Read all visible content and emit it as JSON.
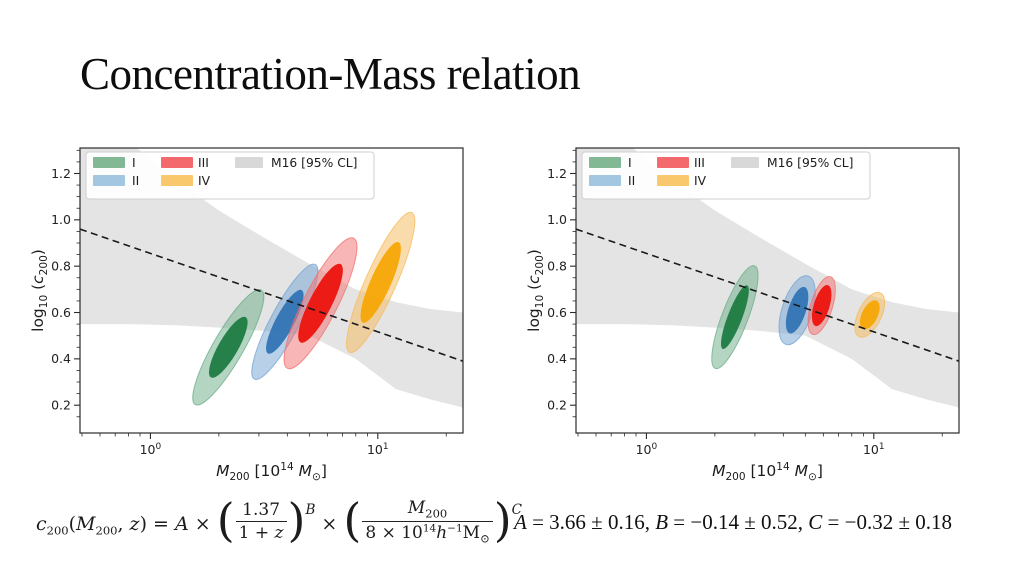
{
  "slide": {
    "title": "Concentration-Mass relation"
  },
  "colors": {
    "background": "#ffffff",
    "band": "#dfdfdf",
    "band_legend": "#d8d8d8",
    "fit_line": "#1a1a1a",
    "axis": "#2b2b2b",
    "tick_label": "#222222",
    "legend_border": "#cfcfcf",
    "series": {
      "I": {
        "outer": "#6aab85",
        "inner": "#1d7c42",
        "legend": "#82b894"
      },
      "II": {
        "outer": "#72a3d1",
        "inner": "#3274b5",
        "legend": "#a3c6e1"
      },
      "III": {
        "outer": "#f26d6d",
        "inner": "#ec130e",
        "legend": "#f4696b"
      },
      "IV": {
        "outer": "#f5b95a",
        "inner": "#f7a707",
        "legend": "#f9c86d"
      }
    }
  },
  "chart_data": [
    {
      "type": "scatter",
      "panel": "left",
      "title": "",
      "xlabel": "M200 [10^14 Msun]",
      "ylabel": "log10(c200)",
      "xscale": "log",
      "xlim": [
        0.49,
        23.7
      ],
      "ylim": [
        0.08,
        1.31
      ],
      "grid": false,
      "legend_position": "upper left",
      "legend": [
        "I",
        "II",
        "III",
        "IV",
        "M16 [95% CL]"
      ],
      "xlabel_parts": [
        {
          "t": "M",
          "style": "italic"
        },
        {
          "t": "200",
          "script": "sub"
        },
        {
          "t": " [10"
        },
        {
          "t": "14",
          "script": "sup"
        },
        {
          "t": " "
        },
        {
          "t": "M",
          "style": "italic"
        },
        {
          "t": "⊙",
          "script": "sub"
        },
        {
          "t": "]"
        }
      ],
      "ylabel_parts": [
        {
          "t": "log"
        },
        {
          "t": "10",
          "script": "sub"
        },
        {
          "t": " ("
        },
        {
          "t": "c",
          "style": "italic"
        },
        {
          "t": "200",
          "script": "sub"
        },
        {
          "t": ")"
        }
      ],
      "xticks": [
        {
          "value": 1,
          "base": "10",
          "exp": "0"
        },
        {
          "value": 10,
          "base": "10",
          "exp": "1"
        }
      ],
      "xticks_minor": [
        0.5,
        0.6,
        0.7,
        0.8,
        0.9,
        2,
        3,
        4,
        5,
        6,
        7,
        8,
        9,
        20
      ],
      "yticks": [
        0.2,
        0.4,
        0.6,
        0.8,
        1.0,
        1.2
      ],
      "fit_line": {
        "x": [
          0.49,
          23.7
        ],
        "y": [
          0.96,
          0.39
        ],
        "style": "dashed"
      },
      "band": {
        "label": "M16 [95% CL]",
        "x": [
          0.49,
          0.8,
          1.3,
          2.0,
          3.2,
          5.0,
          8.0,
          12.0,
          17.0,
          23.7
        ],
        "upper": [
          1.5,
          1.34,
          1.17,
          1.04,
          0.92,
          0.81,
          0.7,
          0.645,
          0.615,
          0.6
        ],
        "lower": [
          0.55,
          0.55,
          0.545,
          0.535,
          0.52,
          0.5,
          0.4,
          0.27,
          0.225,
          0.19
        ]
      },
      "series": [
        {
          "name": "I",
          "center": [
            2.2,
            0.45
          ],
          "outer": {
            "semi_major": 0.285,
            "semi_minor": 0.065,
            "angle_deg": 30
          },
          "inner": {
            "semi_major": 0.15,
            "semi_minor": 0.042,
            "angle_deg": 30
          }
        },
        {
          "name": "II",
          "center": [
            3.9,
            0.56
          ],
          "outer": {
            "semi_major": 0.28,
            "semi_minor": 0.062,
            "angle_deg": 28
          },
          "inner": {
            "semi_major": 0.155,
            "semi_minor": 0.04,
            "angle_deg": 28
          }
        },
        {
          "name": "III",
          "center": [
            5.6,
            0.64
          ],
          "outer": {
            "semi_major": 0.315,
            "semi_minor": 0.073,
            "angle_deg": 27
          },
          "inner": {
            "semi_major": 0.19,
            "semi_minor": 0.048,
            "angle_deg": 27
          }
        },
        {
          "name": "IV",
          "center": [
            10.3,
            0.73
          ],
          "outer": {
            "semi_major": 0.33,
            "semi_minor": 0.066,
            "angle_deg": 24
          },
          "inner": {
            "semi_major": 0.19,
            "semi_minor": 0.044,
            "angle_deg": 24
          }
        }
      ]
    },
    {
      "type": "scatter",
      "panel": "right",
      "title": "",
      "xlabel": "M200 [10^14 Msun]",
      "ylabel": "log10(c200)",
      "xscale": "log",
      "xlim": [
        0.49,
        23.7
      ],
      "ylim": [
        0.08,
        1.31
      ],
      "grid": false,
      "legend_position": "upper left",
      "legend": [
        "I",
        "II",
        "III",
        "IV",
        "M16 [95% CL]"
      ],
      "xlabel_parts": [
        {
          "t": "M",
          "style": "italic"
        },
        {
          "t": "200",
          "script": "sub"
        },
        {
          "t": " [10"
        },
        {
          "t": "14",
          "script": "sup"
        },
        {
          "t": " "
        },
        {
          "t": "M",
          "style": "italic"
        },
        {
          "t": "⊙",
          "script": "sub"
        },
        {
          "t": "]"
        }
      ],
      "ylabel_parts": [
        {
          "t": "log"
        },
        {
          "t": "10",
          "script": "sub"
        },
        {
          "t": " ("
        },
        {
          "t": "c",
          "style": "italic"
        },
        {
          "t": "200",
          "script": "sub"
        },
        {
          "t": ")"
        }
      ],
      "xticks": [
        {
          "value": 1,
          "base": "10",
          "exp": "0"
        },
        {
          "value": 10,
          "base": "10",
          "exp": "1"
        }
      ],
      "xticks_minor": [
        0.5,
        0.6,
        0.7,
        0.8,
        0.9,
        2,
        3,
        4,
        5,
        6,
        7,
        8,
        9,
        20
      ],
      "yticks": [
        0.2,
        0.4,
        0.6,
        0.8,
        1.0,
        1.2
      ],
      "fit_line": {
        "x": [
          0.49,
          23.7
        ],
        "y": [
          0.96,
          0.39
        ],
        "style": "dashed"
      },
      "band": {
        "label": "M16 [95% CL]",
        "x": [
          0.49,
          0.8,
          1.3,
          2.0,
          3.2,
          5.0,
          8.0,
          12.0,
          17.0,
          23.7
        ],
        "upper": [
          1.5,
          1.34,
          1.17,
          1.04,
          0.92,
          0.81,
          0.7,
          0.645,
          0.615,
          0.6
        ],
        "lower": [
          0.55,
          0.55,
          0.545,
          0.535,
          0.52,
          0.5,
          0.4,
          0.27,
          0.225,
          0.19
        ]
      },
      "series": [
        {
          "name": "I",
          "center": [
            2.45,
            0.58
          ],
          "outer": {
            "semi_major": 0.237,
            "semi_minor": 0.056,
            "angle_deg": 21
          },
          "inner": {
            "semi_major": 0.147,
            "semi_minor": 0.031,
            "angle_deg": 21
          }
        },
        {
          "name": "II",
          "center": [
            4.6,
            0.61
          ],
          "outer": {
            "semi_major": 0.155,
            "semi_minor": 0.065,
            "angle_deg": 18
          },
          "inner": {
            "semi_major": 0.105,
            "semi_minor": 0.038,
            "angle_deg": 18
          }
        },
        {
          "name": "III",
          "center": [
            5.9,
            0.63
          ],
          "outer": {
            "semi_major": 0.13,
            "semi_minor": 0.047,
            "angle_deg": 17
          },
          "inner": {
            "semi_major": 0.092,
            "semi_minor": 0.034,
            "angle_deg": 17
          }
        },
        {
          "name": "IV",
          "center": [
            9.6,
            0.59
          ],
          "outer": {
            "semi_major": 0.105,
            "semi_minor": 0.05,
            "angle_deg": 26
          },
          "inner": {
            "semi_major": 0.068,
            "semi_minor": 0.034,
            "angle_deg": 26
          }
        }
      ]
    }
  ],
  "eq": {
    "plain": "c200(M200, z) = A × (1.37/(1+z))^B × (M200/(8×10^14 h^−1 M⊙))^C",
    "c": "c",
    "c_sub": "200",
    "open": "(",
    "M": "M",
    "M_sub": "200",
    "comma": ", ",
    "z": "z",
    "close": ")",
    "equals": " = ",
    "A": "A",
    "times": " × ",
    "lparen": "(",
    "rparen": ")",
    "f1_num": "1.37",
    "f1_den_pre": "1 + ",
    "f1_den_var": "z",
    "exp1": "B",
    "f2_num": "M",
    "f2_num_sub": "200",
    "f2_den_pre": "8 × 10",
    "f2_den_exp": "14",
    "f2_den_h": "h",
    "f2_den_h_exp": "−1",
    "f2_den_m": "M",
    "f2_den_m_sub": "⊙",
    "exp2": "C"
  },
  "params": {
    "plain": "A = 3.66 ± 0.16, B = −0.14 ± 0.52, C = −0.32 ± 0.18",
    "A_var": "A",
    "A_val": " = 3.66 ± 0.16, ",
    "B_var": "B",
    "B_val": " = −0.14 ± 0.52, ",
    "C_var": "C",
    "C_val": " = −0.32 ± 0.18"
  }
}
